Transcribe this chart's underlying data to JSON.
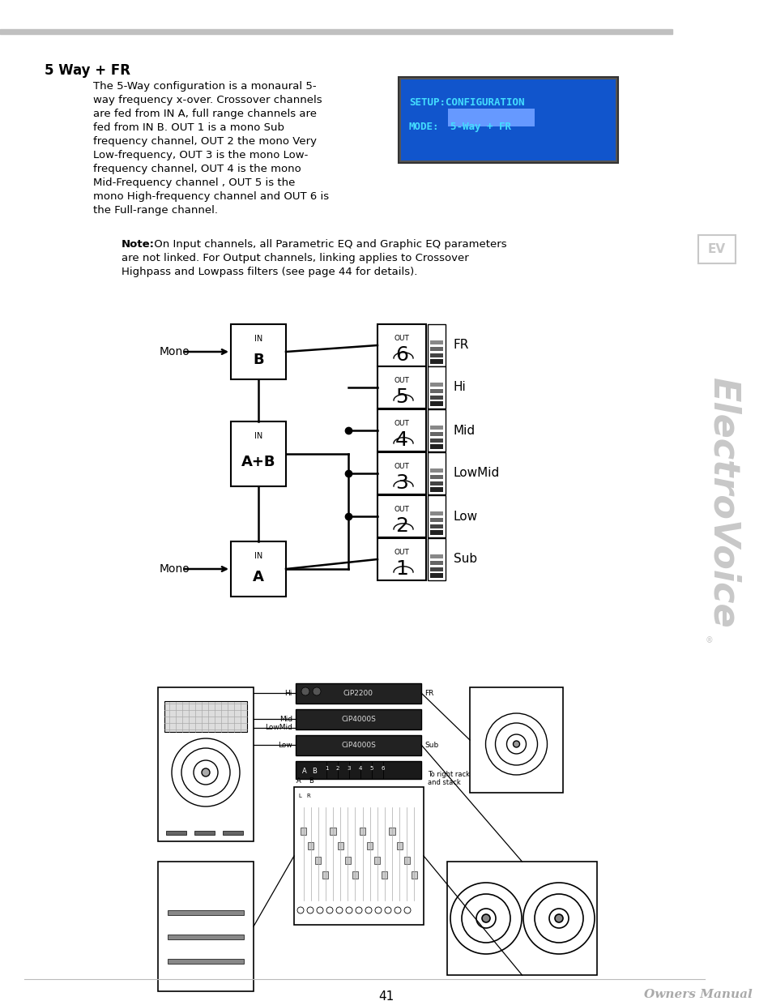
{
  "page_title": "5 Way + FR",
  "body_lines": [
    "The 5-Way configuration is a monaural 5-",
    "way frequency x-over. Crossover channels",
    "are fed from IN A, full range channels are",
    "fed from IN B. OUT 1 is a mono Sub",
    "frequency channel, OUT 2 the mono Very",
    "Low-frequency, OUT 3 is the mono Low-",
    "frequency channel, OUT 4 is the mono",
    "Mid-Frequency channel , OUT 5 is the",
    "mono High-frequency channel and OUT 6 is",
    "the Full-range channel."
  ],
  "note_bold": "Note:",
  "note_lines": [
    " On Input channels, all Parametric EQ and Graphic EQ parameters",
    "are not linked. For Output channels, linking applies to Crossover",
    "Highpass and Lowpass filters (see page 44 for details)."
  ],
  "lcd_line1": "SETUP:CONFIGURATION",
  "lcd_line2_prefix": "MODE:",
  "lcd_line2_highlight": "5-Way + FR",
  "lcd_bg": "#1155cc",
  "lcd_border": "#aaaaaa",
  "lcd_text_color": "#44ddff",
  "lcd_highlight_bg": "#4477ee",
  "page_number": "41",
  "footer_text": "Owners Manual",
  "bg_color": "#ffffff",
  "text_color": "#000000",
  "header_bar_color": "#c0c0c0",
  "ev_logo_color": "#cccccc",
  "ev_text_color": "#c8c8c8",
  "diagram_outputs": [
    "FR",
    "Hi",
    "Mid",
    "LowMid",
    "Low",
    "Sub"
  ],
  "diagram_out_numbers": [
    "6",
    "5",
    "4",
    "3",
    "2",
    "1"
  ],
  "inputs_top": "B",
  "inputs_mid": "A+B",
  "inputs_bot": "A"
}
